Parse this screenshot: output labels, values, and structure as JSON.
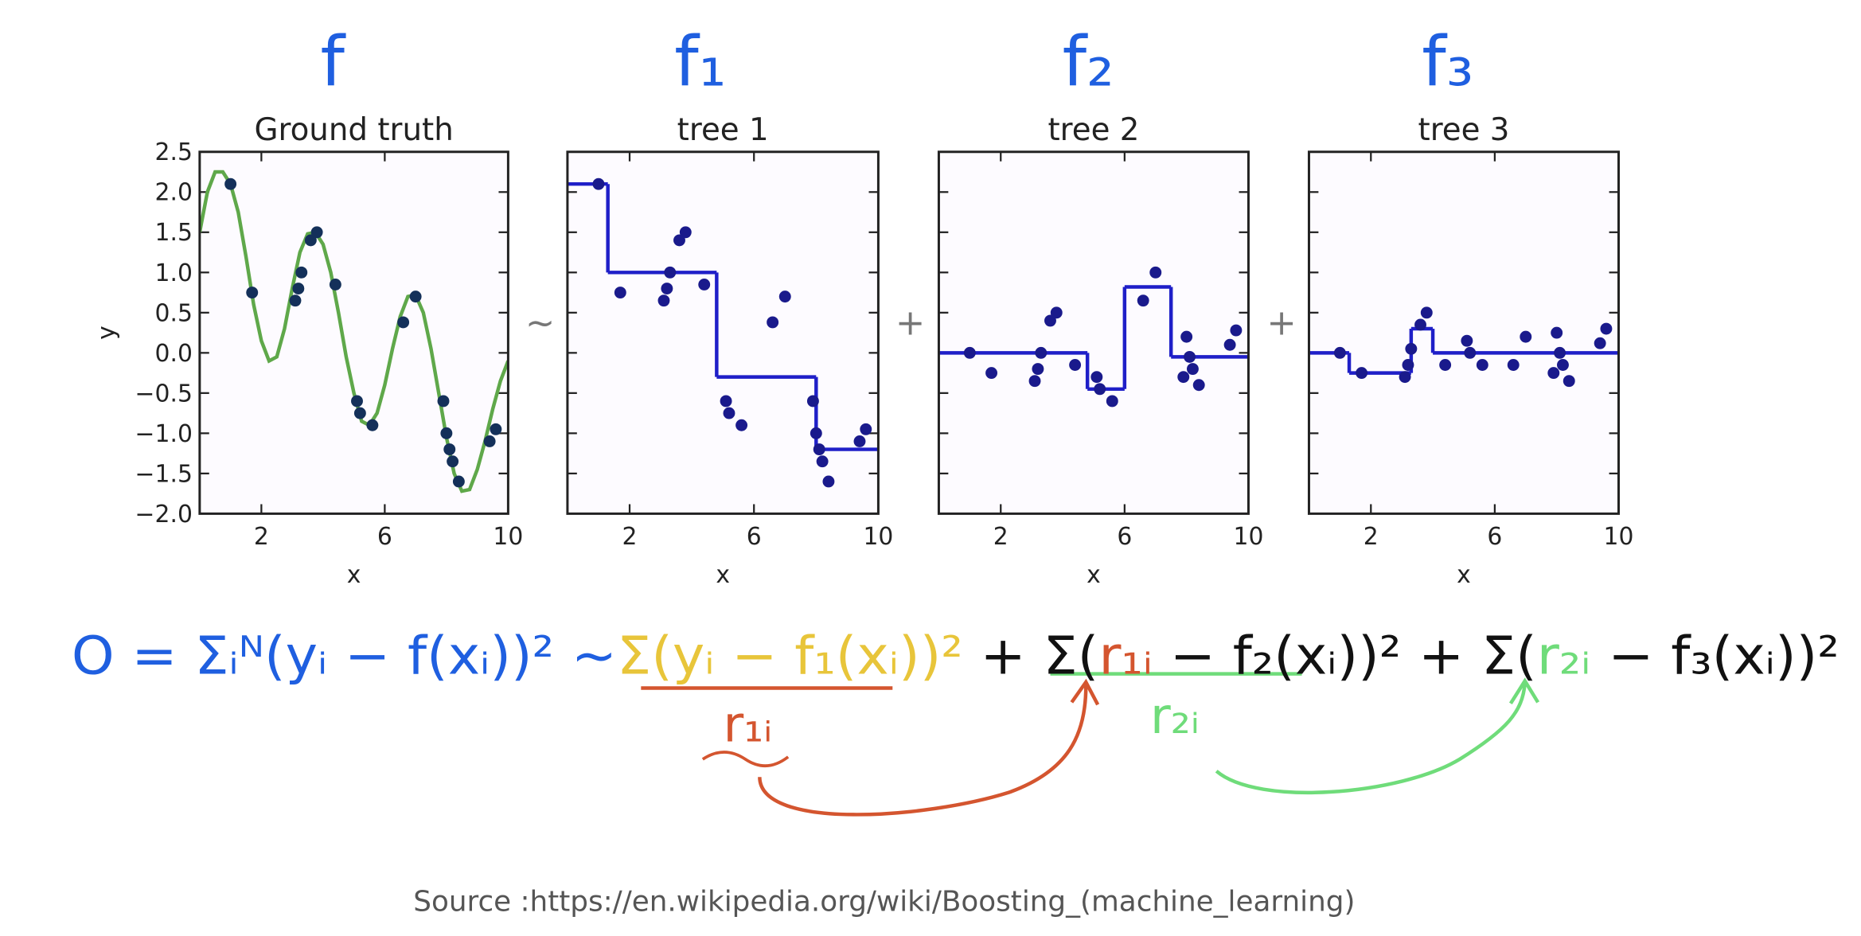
{
  "chart_data": [
    {
      "type": "line",
      "title": "Ground truth",
      "xlabel": "x",
      "ylabel": "y",
      "xlim": [
        0,
        10
      ],
      "ylim": [
        -2.0,
        2.5
      ],
      "xticks": [
        2,
        6,
        10
      ],
      "yticks": [
        {
          "value": -2.0,
          "label": "−2.0"
        },
        {
          "value": -1.5,
          "label": "−1.5"
        },
        {
          "value": -1.0,
          "label": "−1.0"
        },
        {
          "value": -0.5,
          "label": "−0.5"
        },
        {
          "value": 0.0,
          "label": "0.0"
        },
        0.5,
        {
          "value": 1.0,
          "label": "1.0"
        },
        1.5,
        {
          "value": 2.0,
          "label": "2.0"
        },
        2.5
      ],
      "show_ytick_labels": true,
      "series": [
        {
          "kind": "line",
          "color": "#5fa84a",
          "x": [
            0,
            0.25,
            0.5,
            0.75,
            1.0,
            1.25,
            1.5,
            1.75,
            2.0,
            2.25,
            2.5,
            2.75,
            3.0,
            3.25,
            3.5,
            3.75,
            4.0,
            4.25,
            4.5,
            4.75,
            5.0,
            5.25,
            5.5,
            5.75,
            6.0,
            6.25,
            6.5,
            6.75,
            7.0,
            7.25,
            7.5,
            7.75,
            8.0,
            8.25,
            8.5,
            8.75,
            9.0,
            9.25,
            9.5,
            9.75,
            10.0
          ],
          "values": [
            1.5,
            2.0,
            2.25,
            2.25,
            2.1,
            1.75,
            1.2,
            0.6,
            0.15,
            -0.1,
            -0.05,
            0.3,
            0.8,
            1.25,
            1.48,
            1.5,
            1.35,
            1.0,
            0.5,
            -0.05,
            -0.5,
            -0.85,
            -0.9,
            -0.75,
            -0.4,
            0.05,
            0.45,
            0.7,
            0.72,
            0.5,
            0.05,
            -0.5,
            -1.05,
            -1.5,
            -1.72,
            -1.7,
            -1.45,
            -1.1,
            -0.7,
            -0.35,
            -0.1
          ]
        },
        {
          "kind": "scatter",
          "color": "#14305a",
          "x": [
            1.0,
            1.7,
            3.1,
            3.2,
            3.3,
            3.6,
            3.8,
            4.4,
            5.1,
            5.2,
            5.6,
            6.6,
            7.0,
            7.9,
            8.0,
            8.1,
            8.2,
            8.4,
            9.4,
            9.6
          ],
          "values": [
            2.1,
            0.75,
            0.65,
            0.8,
            1.0,
            1.4,
            1.5,
            0.85,
            -0.6,
            -0.75,
            -0.9,
            0.38,
            0.7,
            -0.6,
            -1.0,
            -1.2,
            -1.35,
            -1.6,
            -1.1,
            -0.95
          ]
        }
      ]
    },
    {
      "type": "line",
      "title": "tree 1",
      "xlabel": "x",
      "xlim": [
        0,
        10
      ],
      "ylim": [
        -2.0,
        2.5
      ],
      "xticks": [
        2,
        6,
        10
      ],
      "yticks": [
        -2.0,
        -1.5,
        -1.0,
        -0.5,
        0.0,
        0.5,
        1.0,
        1.5,
        2.0,
        2.5
      ],
      "show_ytick_labels": false,
      "series": [
        {
          "kind": "step",
          "color": "#1f1fc8",
          "x": [
            0,
            1.3,
            4.8,
            8.0
          ],
          "values": [
            2.1,
            1.0,
            -0.3,
            -1.2
          ]
        },
        {
          "kind": "scatter",
          "color": "#1a1a8c",
          "x": [
            1.0,
            1.7,
            3.1,
            3.2,
            3.3,
            3.6,
            3.8,
            4.4,
            5.1,
            5.2,
            5.6,
            6.6,
            7.0,
            7.9,
            8.0,
            8.1,
            8.2,
            8.4,
            9.4,
            9.6
          ],
          "values": [
            2.1,
            0.75,
            0.65,
            0.8,
            1.0,
            1.4,
            1.5,
            0.85,
            -0.6,
            -0.75,
            -0.9,
            0.38,
            0.7,
            -0.6,
            -1.0,
            -1.2,
            -1.35,
            -1.6,
            -1.1,
            -0.95
          ]
        }
      ]
    },
    {
      "type": "line",
      "title": "tree 2",
      "xlabel": "x",
      "xlim": [
        0,
        10
      ],
      "ylim": [
        -2.0,
        2.5
      ],
      "xticks": [
        2,
        6,
        10
      ],
      "yticks": [
        -2.0,
        -1.5,
        -1.0,
        -0.5,
        0.0,
        0.5,
        1.0,
        1.5,
        2.0,
        2.5
      ],
      "show_ytick_labels": false,
      "series": [
        {
          "kind": "step",
          "color": "#1f1fc8",
          "x": [
            0,
            4.8,
            6.0,
            7.5
          ],
          "values": [
            0.0,
            -0.45,
            0.82,
            -0.05
          ]
        },
        {
          "kind": "scatter",
          "color": "#1a1a8c",
          "x": [
            1.0,
            1.7,
            3.1,
            3.2,
            3.3,
            3.6,
            3.8,
            4.4,
            5.1,
            5.2,
            5.6,
            6.6,
            7.0,
            7.9,
            8.0,
            8.1,
            8.2,
            8.4,
            9.4,
            9.6
          ],
          "values": [
            0.0,
            -0.25,
            -0.35,
            -0.2,
            0.0,
            0.4,
            0.5,
            -0.15,
            -0.3,
            -0.45,
            -0.6,
            0.65,
            1.0,
            -0.3,
            0.2,
            -0.05,
            -0.2,
            -0.4,
            0.1,
            0.28
          ]
        }
      ]
    },
    {
      "type": "line",
      "title": "tree 3",
      "xlabel": "x",
      "xlim": [
        0,
        10
      ],
      "ylim": [
        -2.0,
        2.5
      ],
      "xticks": [
        2,
        6,
        10
      ],
      "yticks": [
        -2.0,
        -1.5,
        -1.0,
        -0.5,
        0.0,
        0.5,
        1.0,
        1.5,
        2.0,
        2.5
      ],
      "show_ytick_labels": false,
      "series": [
        {
          "kind": "step",
          "color": "#1f1fc8",
          "x": [
            0,
            1.3,
            3.3,
            4.0
          ],
          "values": [
            0.0,
            -0.25,
            0.3,
            0.0
          ]
        },
        {
          "kind": "scatter",
          "color": "#1a1a8c",
          "x": [
            1.0,
            1.7,
            3.1,
            3.2,
            3.3,
            3.6,
            3.8,
            4.4,
            5.1,
            5.2,
            5.6,
            6.6,
            7.0,
            7.9,
            8.0,
            8.1,
            8.2,
            8.4,
            9.4,
            9.6
          ],
          "values": [
            0.0,
            -0.25,
            -0.3,
            -0.15,
            0.05,
            0.35,
            0.5,
            -0.15,
            0.15,
            0.0,
            -0.15,
            -0.15,
            0.2,
            -0.25,
            0.25,
            0.0,
            -0.15,
            -0.35,
            0.12,
            0.3
          ]
        }
      ]
    }
  ],
  "function_labels": [
    "f",
    "f₁",
    "f₂",
    "f₃"
  ],
  "operators": [
    "~",
    "+",
    "+"
  ],
  "equation": [
    {
      "text": "O = Σᵢᴺ(yᵢ − f(xᵢ))² ~",
      "color": "#1f5fe0"
    },
    {
      "text": "Σ(yᵢ − f₁(xᵢ))²",
      "color": "#e8c53a"
    },
    {
      "text": " + Σ(",
      "color": "#111111"
    },
    {
      "text": "r₁ᵢ",
      "color": "#d4552f"
    },
    {
      "text": " − f₂(xᵢ))² + Σ(",
      "color": "#111111"
    },
    {
      "text": "r₂ᵢ",
      "color": "#6fdc7a"
    },
    {
      "text": " − f₃(xᵢ))²",
      "color": "#111111"
    }
  ],
  "residual_labels": [
    {
      "text": "r₁ᵢ",
      "color": "#d4552f"
    },
    {
      "text": "r₂ᵢ",
      "color": "#6fdc7a"
    }
  ],
  "source": "Source :https://en.wikipedia.org/wiki/Boosting_(machine_learning)"
}
